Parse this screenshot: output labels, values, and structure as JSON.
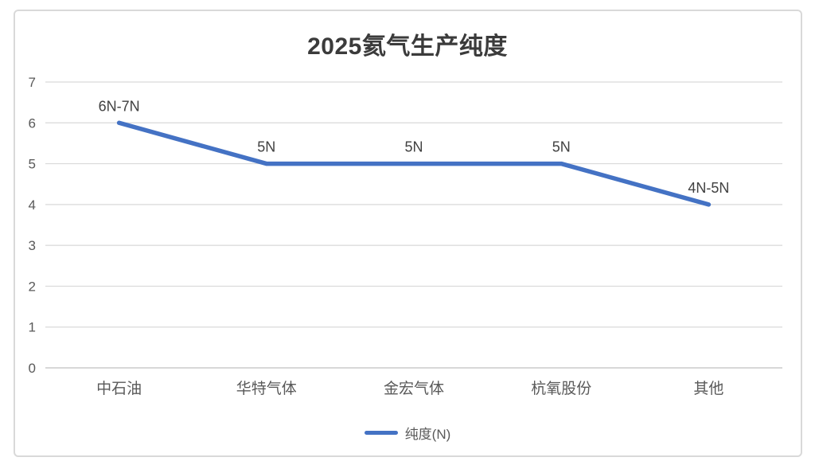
{
  "chart": {
    "title": "2025氦气生产纯度",
    "legend_label": "纯度(N)"
  },
  "chart_data": {
    "type": "line",
    "title": "2025氦气生产纯度",
    "categories": [
      "中石油",
      "华特气体",
      "金宏气体",
      "杭氧股份",
      "其他"
    ],
    "series": [
      {
        "name": "纯度(N)",
        "values": [
          6,
          5,
          5,
          5,
          4
        ],
        "point_labels": [
          "6N-7N",
          "5N",
          "5N",
          "5N",
          "4N-5N"
        ],
        "color": "#4472C4"
      }
    ],
    "xlabel": "",
    "ylabel": "",
    "ylim": [
      0,
      7
    ],
    "yticks": [
      0,
      1,
      2,
      3,
      4,
      5,
      6,
      7
    ],
    "grid": true,
    "legend_position": "bottom",
    "colors": {
      "line": "#4472C4",
      "gridline": "#d9d9d9",
      "axis_line": "#d2d2d2",
      "axis_label": "#595959",
      "data_label": "#404040",
      "title": "#3b3b3b",
      "frame_border": "#d9d9d9"
    }
  }
}
